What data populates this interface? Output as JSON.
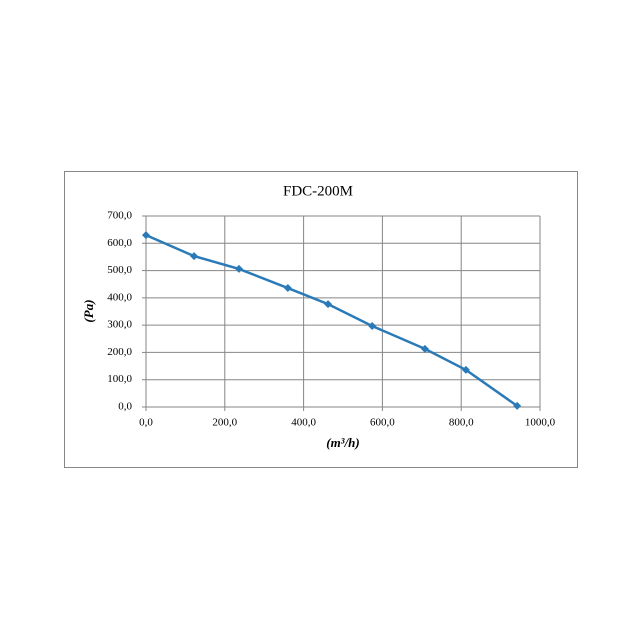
{
  "chart_data": {
    "type": "line",
    "title": "FDC-200M",
    "x_label": "(m³/h)",
    "y_label": "(Pa)",
    "x": [
      0,
      122,
      236,
      360,
      462,
      574,
      708,
      812,
      942
    ],
    "series": [
      {
        "name": "FDC-200M",
        "color": "#2a7ab8",
        "values": [
          630,
          553,
          506,
          436,
          377,
          297,
          213,
          136,
          4
        ]
      }
    ],
    "xlim": [
      0,
      1000
    ],
    "xticks": [
      {
        "value": 0,
        "label": "0,0"
      },
      {
        "value": 200,
        "label": "200,0"
      },
      {
        "value": 400,
        "label": "400,0"
      },
      {
        "value": 600,
        "label": "600,0"
      },
      {
        "value": 800,
        "label": "800,0"
      },
      {
        "value": 1000,
        "label": "1000,0"
      }
    ],
    "ylim": [
      0,
      700
    ],
    "yticks": [
      {
        "value": 0,
        "label": "0,0"
      },
      {
        "value": 100,
        "label": "100,0"
      },
      {
        "value": 200,
        "label": "200,0"
      },
      {
        "value": 300,
        "label": "300,0"
      },
      {
        "value": 400,
        "label": "400,0"
      },
      {
        "value": 500,
        "label": "500,0"
      },
      {
        "value": 600,
        "label": "600,0"
      },
      {
        "value": 700,
        "label": "700,0"
      }
    ],
    "grid": true
  }
}
